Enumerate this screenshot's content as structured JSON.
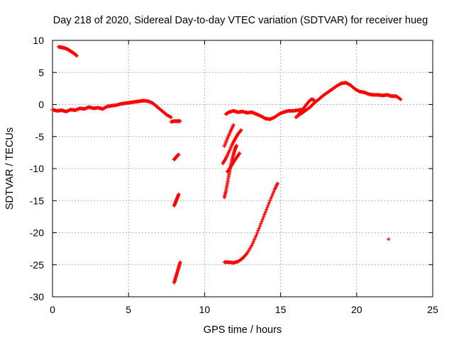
{
  "chart_data": {
    "type": "scatter",
    "title": "Day 218 of 2020, Sidereal Day-to-day VTEC variation (SDTVAR) for receiver hueg",
    "xlabel": "GPS time / hours",
    "ylabel": "SDTVAR / TECUs",
    "xlim": [
      0,
      25
    ],
    "ylim": [
      -30,
      10
    ],
    "xticks": [
      0,
      5,
      10,
      15,
      20,
      25
    ],
    "yticks": [
      -30,
      -25,
      -20,
      -15,
      -10,
      -5,
      0,
      5,
      10
    ],
    "grid": true,
    "marker": "+",
    "color": "#ff0000",
    "series": [
      {
        "name": "arc-top-left",
        "x": [
          0.4,
          0.6,
          0.8,
          1.0,
          1.2,
          1.4,
          1.6
        ],
        "y": [
          9.0,
          8.9,
          8.8,
          8.6,
          8.3,
          8.0,
          7.6
        ]
      },
      {
        "name": "arc-main-morning",
        "x": [
          0.0,
          0.3,
          0.6,
          0.9,
          1.2,
          1.5,
          1.8,
          2.1,
          2.4,
          2.7,
          3.0,
          3.3,
          3.6,
          3.9,
          4.2,
          4.5,
          4.8,
          5.1,
          5.4,
          5.7,
          6.0,
          6.3,
          6.6,
          6.9,
          7.2,
          7.5,
          7.8
        ],
        "y": [
          -0.8,
          -1.0,
          -0.9,
          -1.1,
          -0.8,
          -0.9,
          -0.6,
          -0.7,
          -0.4,
          -0.6,
          -0.5,
          -0.7,
          -0.3,
          -0.2,
          -0.1,
          0.1,
          0.2,
          0.3,
          0.4,
          0.5,
          0.6,
          0.5,
          0.2,
          -0.4,
          -1.0,
          -1.6,
          -2.0
        ]
      },
      {
        "name": "arc-morning-tail",
        "x": [
          7.8,
          8.0,
          8.2,
          8.4
        ],
        "y": [
          -2.7,
          -2.6,
          -2.6,
          -2.6
        ]
      },
      {
        "name": "arc-dip-a",
        "x": [
          8.0,
          8.1,
          8.2,
          8.3
        ],
        "y": [
          -8.6,
          -8.3,
          -8.0,
          -7.8
        ]
      },
      {
        "name": "arc-dip-b",
        "x": [
          8.0,
          8.1,
          8.2,
          8.3
        ],
        "y": [
          -15.8,
          -15.2,
          -14.6,
          -14.0
        ]
      },
      {
        "name": "arc-dip-c",
        "x": [
          8.0,
          8.1,
          8.2,
          8.3,
          8.4
        ],
        "y": [
          -27.8,
          -27.0,
          -26.2,
          -25.4,
          -24.6
        ]
      },
      {
        "name": "arc-main-afternoon",
        "x": [
          11.4,
          11.6,
          11.9,
          12.2,
          12.5,
          12.8,
          13.1,
          13.4,
          13.7,
          14.0,
          14.3,
          14.6,
          14.9,
          15.2,
          15.5,
          15.8,
          16.1,
          16.4
        ],
        "y": [
          -1.5,
          -1.2,
          -1.0,
          -1.2,
          -1.1,
          -1.3,
          -1.2,
          -1.5,
          -1.8,
          -2.2,
          -2.3,
          -2.0,
          -1.5,
          -1.2,
          -1.0,
          -1.0,
          -0.9,
          -0.8
        ]
      },
      {
        "name": "arc-rise-a",
        "x": [
          11.3,
          11.4,
          11.5,
          11.6,
          11.7,
          11.8,
          11.9,
          12.0,
          12.1
        ],
        "y": [
          -14.5,
          -13.5,
          -12.3,
          -11.0,
          -9.8,
          -8.7,
          -7.8,
          -7.0,
          -6.4
        ]
      },
      {
        "name": "arc-rise-b",
        "x": [
          11.2,
          11.4,
          11.6,
          11.8,
          12.0,
          12.2,
          12.4
        ],
        "y": [
          -9.2,
          -8.4,
          -7.4,
          -6.3,
          -5.4,
          -4.6,
          -4.0
        ]
      },
      {
        "name": "arc-rise-c",
        "x": [
          11.5,
          11.7,
          11.9,
          12.1,
          12.3
        ],
        "y": [
          -10.5,
          -9.8,
          -9.0,
          -8.3,
          -7.6
        ]
      },
      {
        "name": "arc-rise-d",
        "x": [
          11.3,
          11.5,
          11.7,
          11.9
        ],
        "y": [
          -6.5,
          -5.3,
          -4.2,
          -3.2
        ]
      },
      {
        "name": "arc-low",
        "x": [
          11.3,
          11.6,
          11.9,
          12.2,
          12.5,
          12.8,
          13.1,
          13.4,
          13.7,
          14.0,
          14.3,
          14.6,
          14.8
        ],
        "y": [
          -24.6,
          -24.6,
          -24.7,
          -24.5,
          -24.0,
          -23.2,
          -22.0,
          -20.4,
          -18.6,
          -16.8,
          -15.0,
          -13.3,
          -12.3
        ]
      },
      {
        "name": "arc-evening",
        "x": [
          16.0,
          16.3,
          16.6,
          16.9,
          17.2,
          17.5,
          17.8,
          18.1,
          18.4,
          18.7,
          19.0,
          19.3,
          19.6,
          19.9,
          20.2,
          20.5,
          20.8,
          21.1,
          21.4,
          21.7,
          22.0,
          22.3,
          22.6,
          22.9
        ],
        "y": [
          -2.0,
          -1.5,
          -1.0,
          -0.5,
          0.2,
          0.8,
          1.4,
          1.9,
          2.4,
          2.9,
          3.3,
          3.4,
          3.0,
          2.4,
          2.0,
          1.9,
          1.6,
          1.5,
          1.5,
          1.4,
          1.5,
          1.3,
          1.3,
          0.8
        ]
      },
      {
        "name": "arc-evening-b",
        "x": [
          16.2,
          16.4,
          16.6,
          16.8,
          17.0,
          17.2
        ],
        "y": [
          -1.5,
          -1.0,
          -0.3,
          0.3,
          0.8,
          0.7
        ]
      },
      {
        "name": "arc-isolated",
        "x": [
          22.1
        ],
        "y": [
          -21.0
        ]
      }
    ]
  }
}
